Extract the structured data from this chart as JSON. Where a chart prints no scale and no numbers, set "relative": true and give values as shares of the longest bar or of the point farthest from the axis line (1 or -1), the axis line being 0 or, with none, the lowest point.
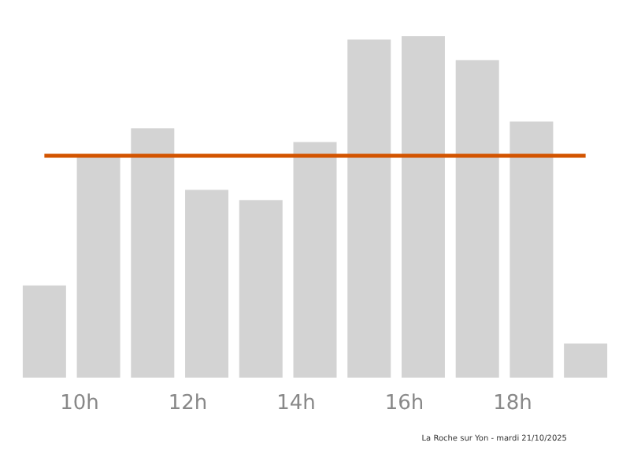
{
  "chart_data": {
    "type": "bar",
    "relative": true,
    "categories": [
      null,
      "10h",
      null,
      "12h",
      null,
      "14h",
      null,
      "16h",
      null,
      "18h",
      null
    ],
    "values": [
      0.27,
      0.65,
      0.73,
      0.55,
      0.52,
      0.69,
      0.99,
      1,
      0.93,
      0.75,
      0.1
    ],
    "color": "#d3d3d3",
    "ref_lines": [
      {
        "axis": "y",
        "value": 0.65,
        "color": "#d35400"
      }
    ],
    "annotations": [
      "La Roche sur Yon - mardi 21/10/2025"
    ]
  }
}
